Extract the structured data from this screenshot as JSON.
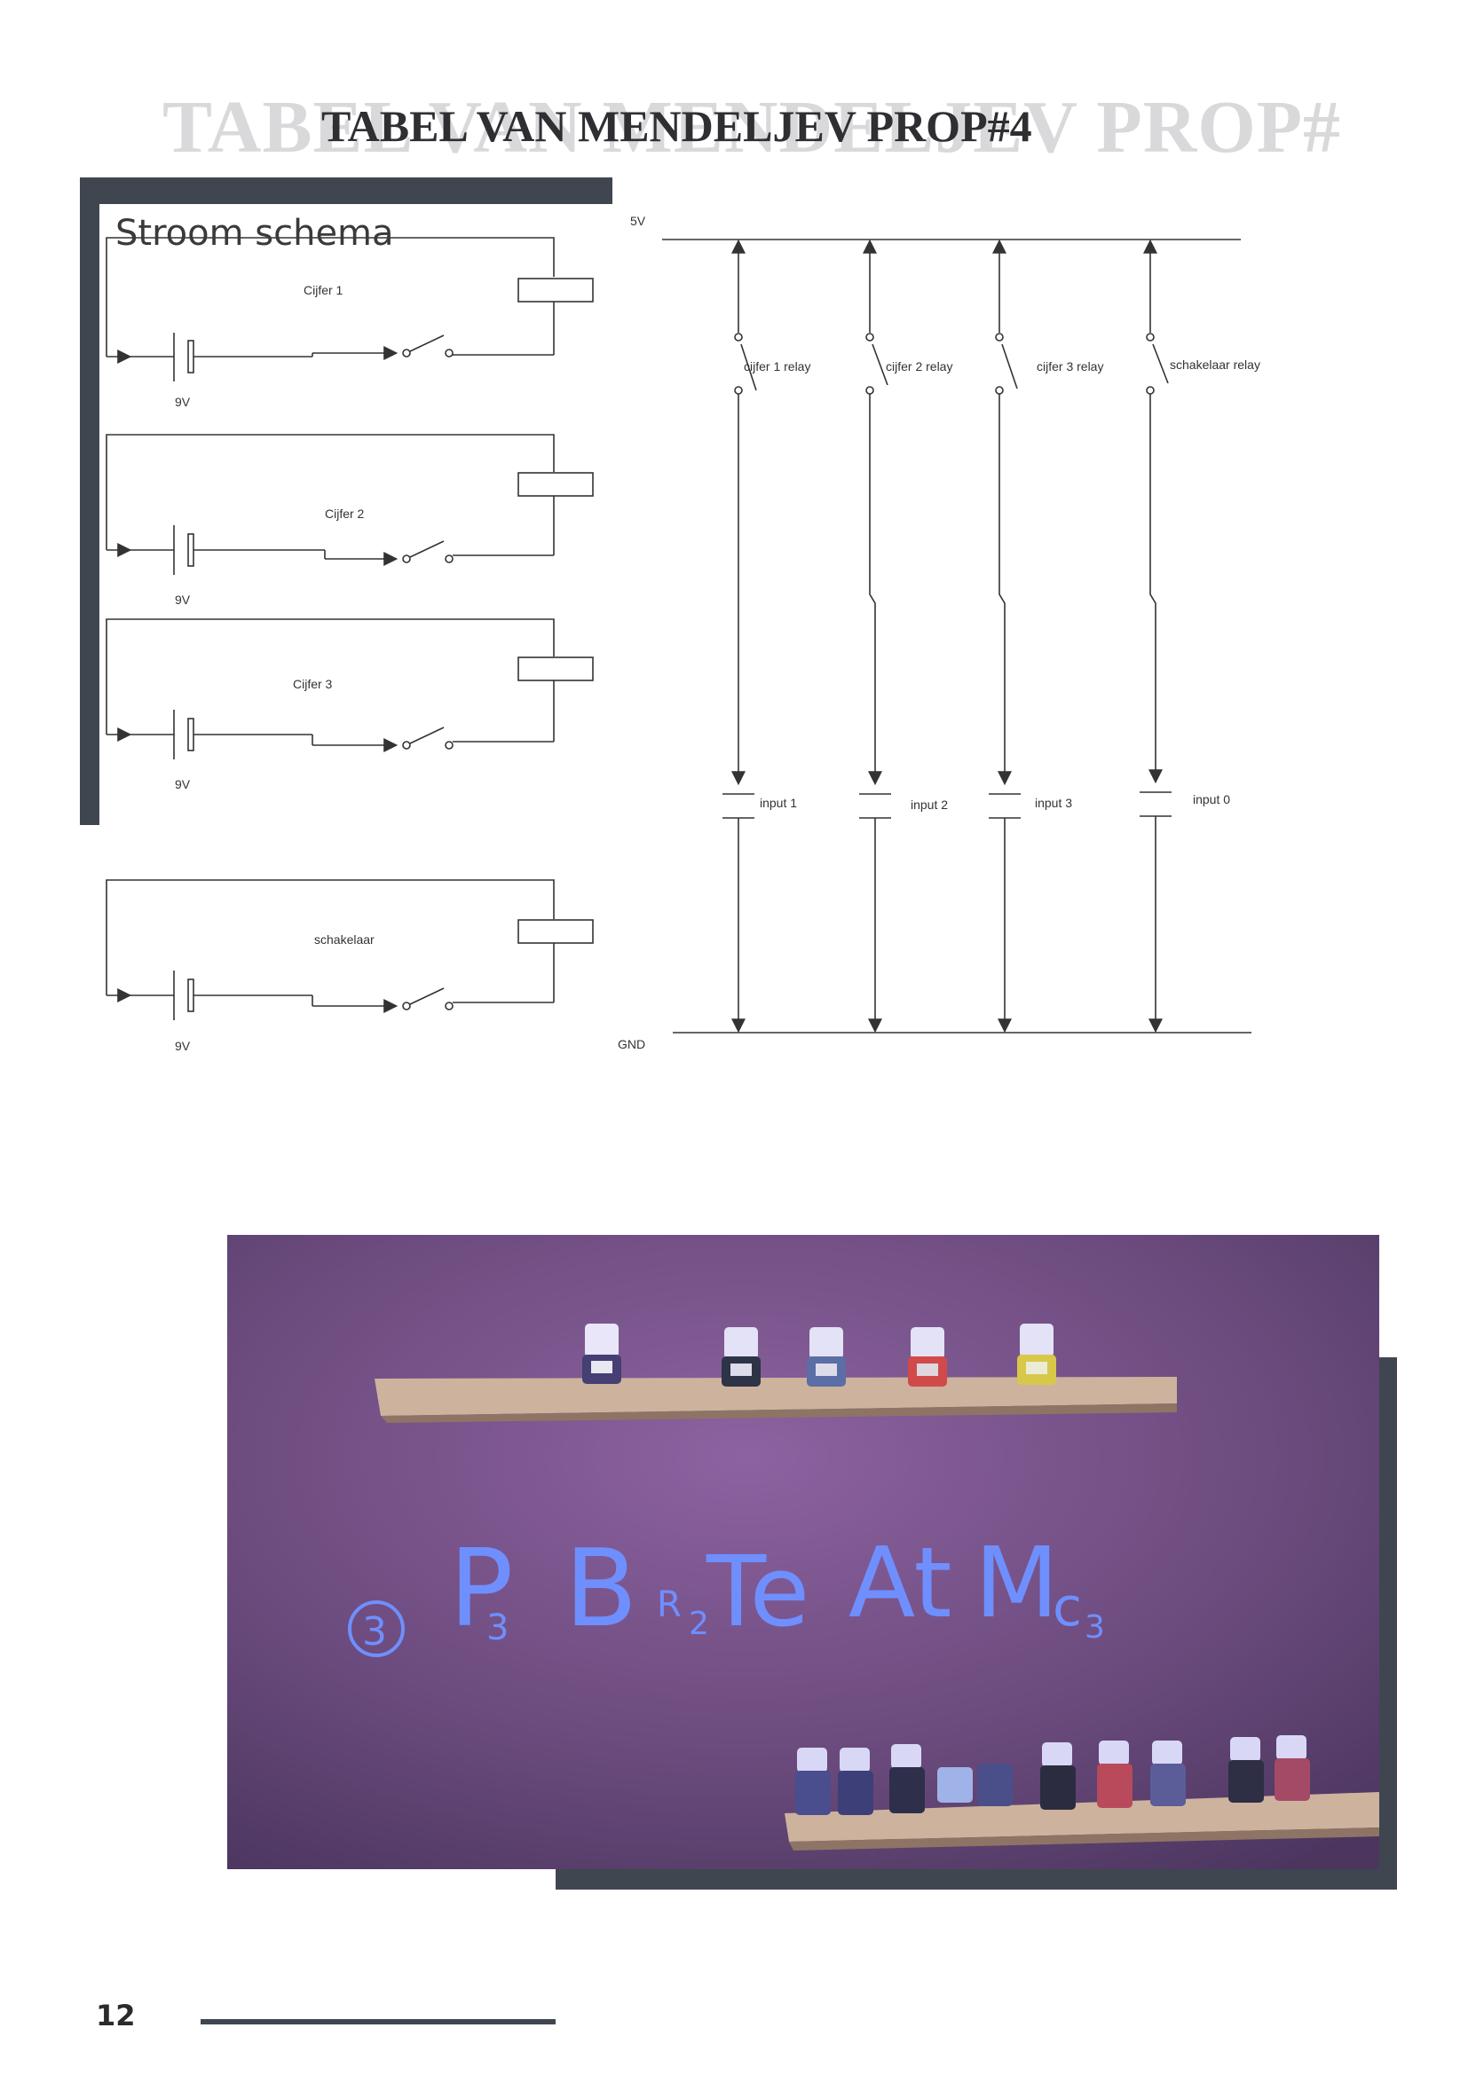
{
  "header": {
    "ghost_title": "TABEL VAN MENDELJEV PROP#",
    "title": "TABEL VAN MENDELJEV PROP#4"
  },
  "section": {
    "title": "Stroom schema"
  },
  "circuits": [
    {
      "label": "Cijfer 1",
      "voltage": "9V"
    },
    {
      "label": "Cijfer 2",
      "voltage": "9V"
    },
    {
      "label": "Cijfer 3",
      "voltage": "9V"
    },
    {
      "label": "schakelaar",
      "voltage": "9V"
    }
  ],
  "bus": {
    "top_label": "5V",
    "bottom_label": "GND",
    "relays": [
      "cijfer 1 relay",
      "cijfer 2 relay",
      "cijfer 3 relay",
      "schakelaar relay"
    ],
    "inputs": [
      "input 1",
      "input 2",
      "input 3",
      "input 0"
    ]
  },
  "photo": {
    "handwriting": {
      "circled": "3",
      "symbols": [
        {
          "main": "P",
          "sub": "3"
        },
        {
          "main": "B",
          "sub": ""
        },
        {
          "main": "R",
          "sub": "2"
        },
        {
          "main": "Te",
          "sub": ""
        },
        {
          "main": "At",
          "sub": ""
        },
        {
          "main": "M",
          "sub": ""
        },
        {
          "main": "c",
          "sub": "3"
        }
      ]
    }
  },
  "footer": {
    "page_number": "12"
  },
  "colors": {
    "frame": "#3f4650",
    "line": "#333333",
    "uv_ink": "#6f8fff"
  }
}
